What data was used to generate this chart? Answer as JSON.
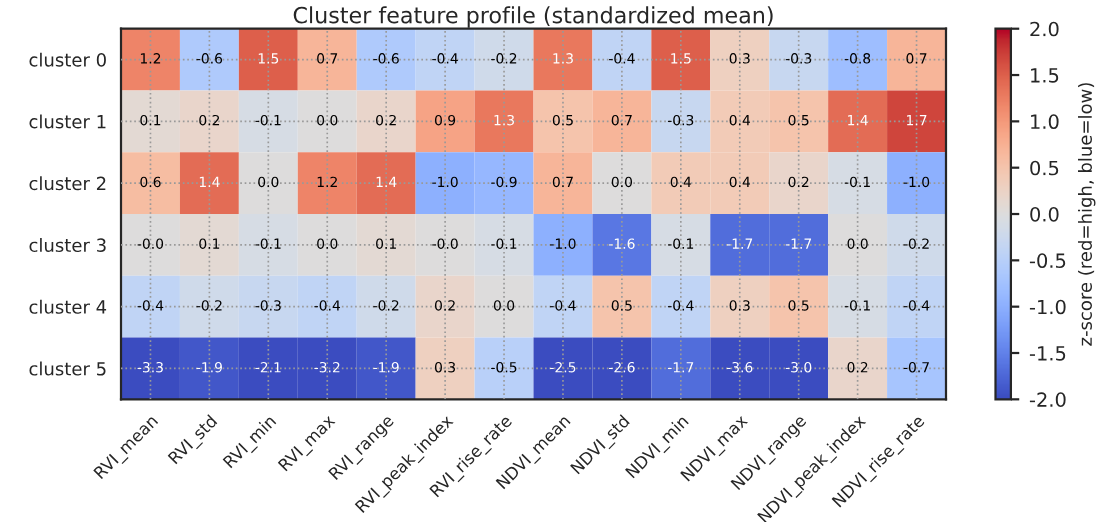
{
  "chart_data": {
    "type": "heatmap",
    "title": "Cluster feature profile (standardized mean)",
    "categories": [
      "RVI_mean",
      "RVI_std",
      "RVI_min",
      "RVI_max",
      "RVI_range",
      "RVI_peak_index",
      "RVI_rise_rate",
      "NDVI_mean",
      "NDVI_std",
      "NDVI_min",
      "NDVI_max",
      "NDVI_range",
      "NDVI_peak_index",
      "NDVI_rise_rate"
    ],
    "y_categories": [
      "cluster 0",
      "cluster 1",
      "cluster 2",
      "cluster 3",
      "cluster 4",
      "cluster 5"
    ],
    "cells": [
      [
        1.2,
        -0.6,
        1.5,
        0.7,
        -0.6,
        -0.4,
        -0.2,
        1.3,
        -0.4,
        1.5,
        0.3,
        -0.3,
        -0.8,
        0.7
      ],
      [
        0.1,
        0.2,
        -0.1,
        0.0,
        0.2,
        0.9,
        1.3,
        0.5,
        0.7,
        -0.3,
        0.4,
        0.5,
        1.4,
        1.7
      ],
      [
        0.6,
        1.4,
        0.0,
        1.2,
        1.4,
        -1.0,
        -0.9,
        0.7,
        0.0,
        0.4,
        0.4,
        0.2,
        -0.1,
        -1.0
      ],
      [
        0.0,
        0.1,
        -0.1,
        0.0,
        0.1,
        0.0,
        -0.1,
        -1.0,
        -1.6,
        -0.1,
        -1.7,
        -1.7,
        0.0,
        -0.2
      ],
      [
        -0.4,
        -0.2,
        -0.3,
        -0.4,
        -0.2,
        0.2,
        0.0,
        -0.4,
        0.5,
        -0.4,
        0.3,
        0.5,
        -0.1,
        -0.4
      ],
      [
        -3.3,
        -1.9,
        -2.1,
        -3.2,
        -1.9,
        0.3,
        -0.5,
        -2.5,
        -2.6,
        -1.7,
        -3.6,
        -3.0,
        0.2,
        -0.7
      ]
    ],
    "cell_labels": [
      [
        "1.2",
        "-0.6",
        "1.5",
        "0.7",
        "-0.6",
        "-0.4",
        "-0.2",
        "1.3",
        "-0.4",
        "1.5",
        "0.3",
        "-0.3",
        "-0.8",
        "0.7"
      ],
      [
        "0.1",
        "0.2",
        "-0.1",
        "0.0",
        "0.2",
        "0.9",
        "1.3",
        "0.5",
        "0.7",
        "-0.3",
        "0.4",
        "0.5",
        "1.4",
        "1.7"
      ],
      [
        "0.6",
        "1.4",
        "0.0",
        "1.2",
        "1.4",
        "-1.0",
        "-0.9",
        "0.7",
        "0.0",
        "0.4",
        "0.4",
        "0.2",
        "-0.1",
        "-1.0"
      ],
      [
        "-0.0",
        "0.1",
        "-0.1",
        "0.0",
        "0.1",
        "-0.0",
        "-0.1",
        "-1.0",
        "-1.6",
        "-0.1",
        "-1.7",
        "-1.7",
        "0.0",
        "-0.2"
      ],
      [
        "-0.4",
        "-0.2",
        "-0.3",
        "-0.4",
        "-0.2",
        "0.2",
        "0.0",
        "-0.4",
        "0.5",
        "-0.4",
        "0.3",
        "0.5",
        "-0.1",
        "-0.4"
      ],
      [
        "-3.3",
        "-1.9",
        "-2.1",
        "-3.2",
        "-1.9",
        "0.3",
        "-0.5",
        "-2.5",
        "-2.6",
        "-1.7",
        "-3.6",
        "-3.0",
        "0.2",
        "-0.7"
      ]
    ],
    "clabel": "z-score (red=high, blue=low)",
    "clim": [
      -2.0,
      2.0
    ],
    "cticks": [
      {
        "value": -2.0,
        "label": "-2.0"
      },
      {
        "value": -1.5,
        "label": "-1.5"
      },
      {
        "value": -1.0,
        "label": "-1.0"
      },
      {
        "value": -0.5,
        "label": "-0.5"
      },
      {
        "value": 0.0,
        "label": "0.0"
      },
      {
        "value": 0.5,
        "label": "0.5"
      },
      {
        "value": 1.0,
        "label": "1.0"
      },
      {
        "value": 1.5,
        "label": "1.5"
      },
      {
        "value": 2.0,
        "label": "2.0"
      }
    ],
    "grid": true
  }
}
